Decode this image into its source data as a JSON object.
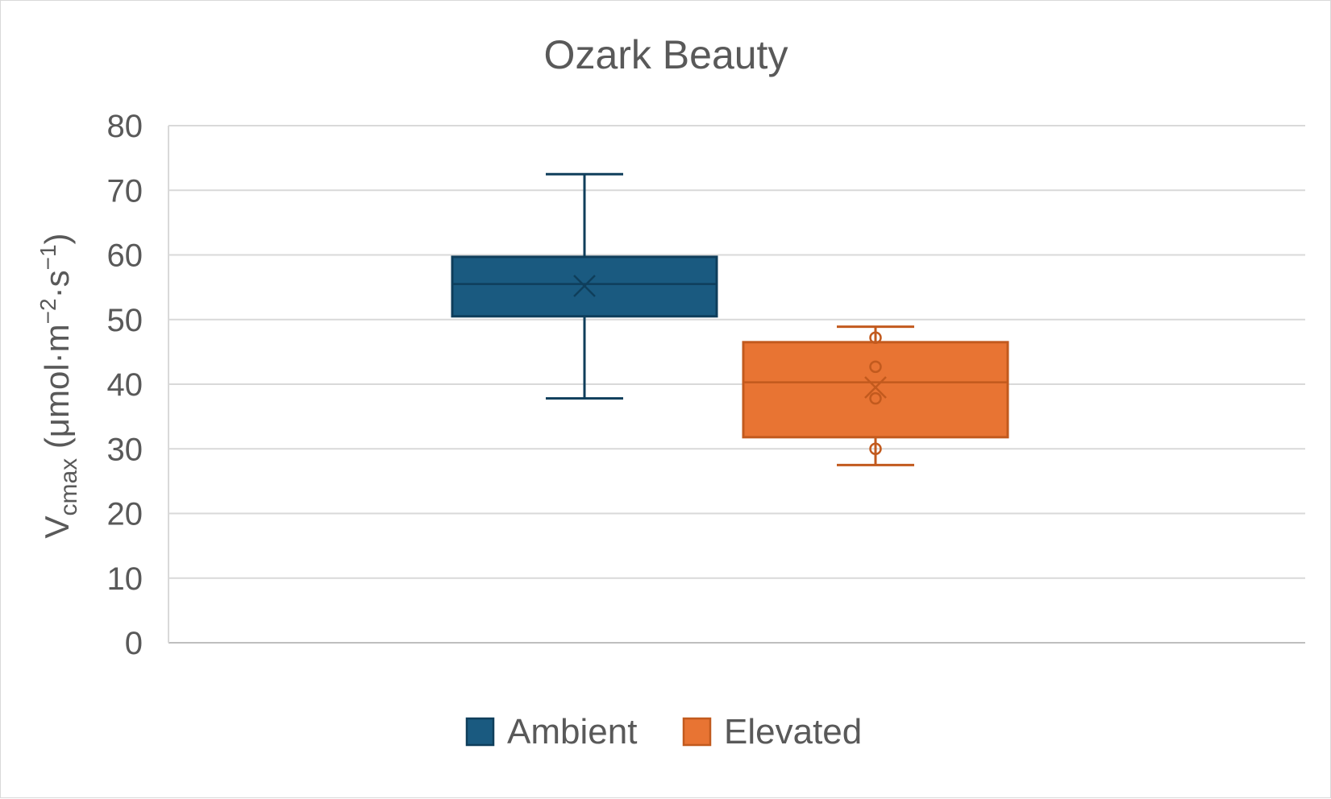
{
  "chart_data": {
    "type": "box",
    "title": "Ozark Beauty",
    "ylabel": {
      "main": "V",
      "subscript": "cmax",
      "unit_prefix": " (μmol·m",
      "sup1": "−2",
      "unit_mid": "·s",
      "sup2": "−1",
      "unit_suffix": ")"
    },
    "ylim": [
      0,
      80
    ],
    "yticks": [
      "0",
      "10",
      "20",
      "30",
      "40",
      "50",
      "60",
      "70",
      "80"
    ],
    "grid": true,
    "legend_position": "bottom",
    "series": [
      {
        "name": "Ambient",
        "color": "#1a5a80",
        "whisker_low": 37.8,
        "q1": 50.5,
        "median": 55.5,
        "q3": 59.7,
        "whisker_high": 72.5,
        "mean": 55.2,
        "points": []
      },
      {
        "name": "Elevated",
        "color": "#e87433",
        "whisker_low": 27.5,
        "q1": 31.8,
        "median": 40.3,
        "q3": 46.5,
        "whisker_high": 48.9,
        "mean": 39.5,
        "points": [
          47.2,
          42.7,
          37.8,
          30.0
        ]
      }
    ]
  }
}
